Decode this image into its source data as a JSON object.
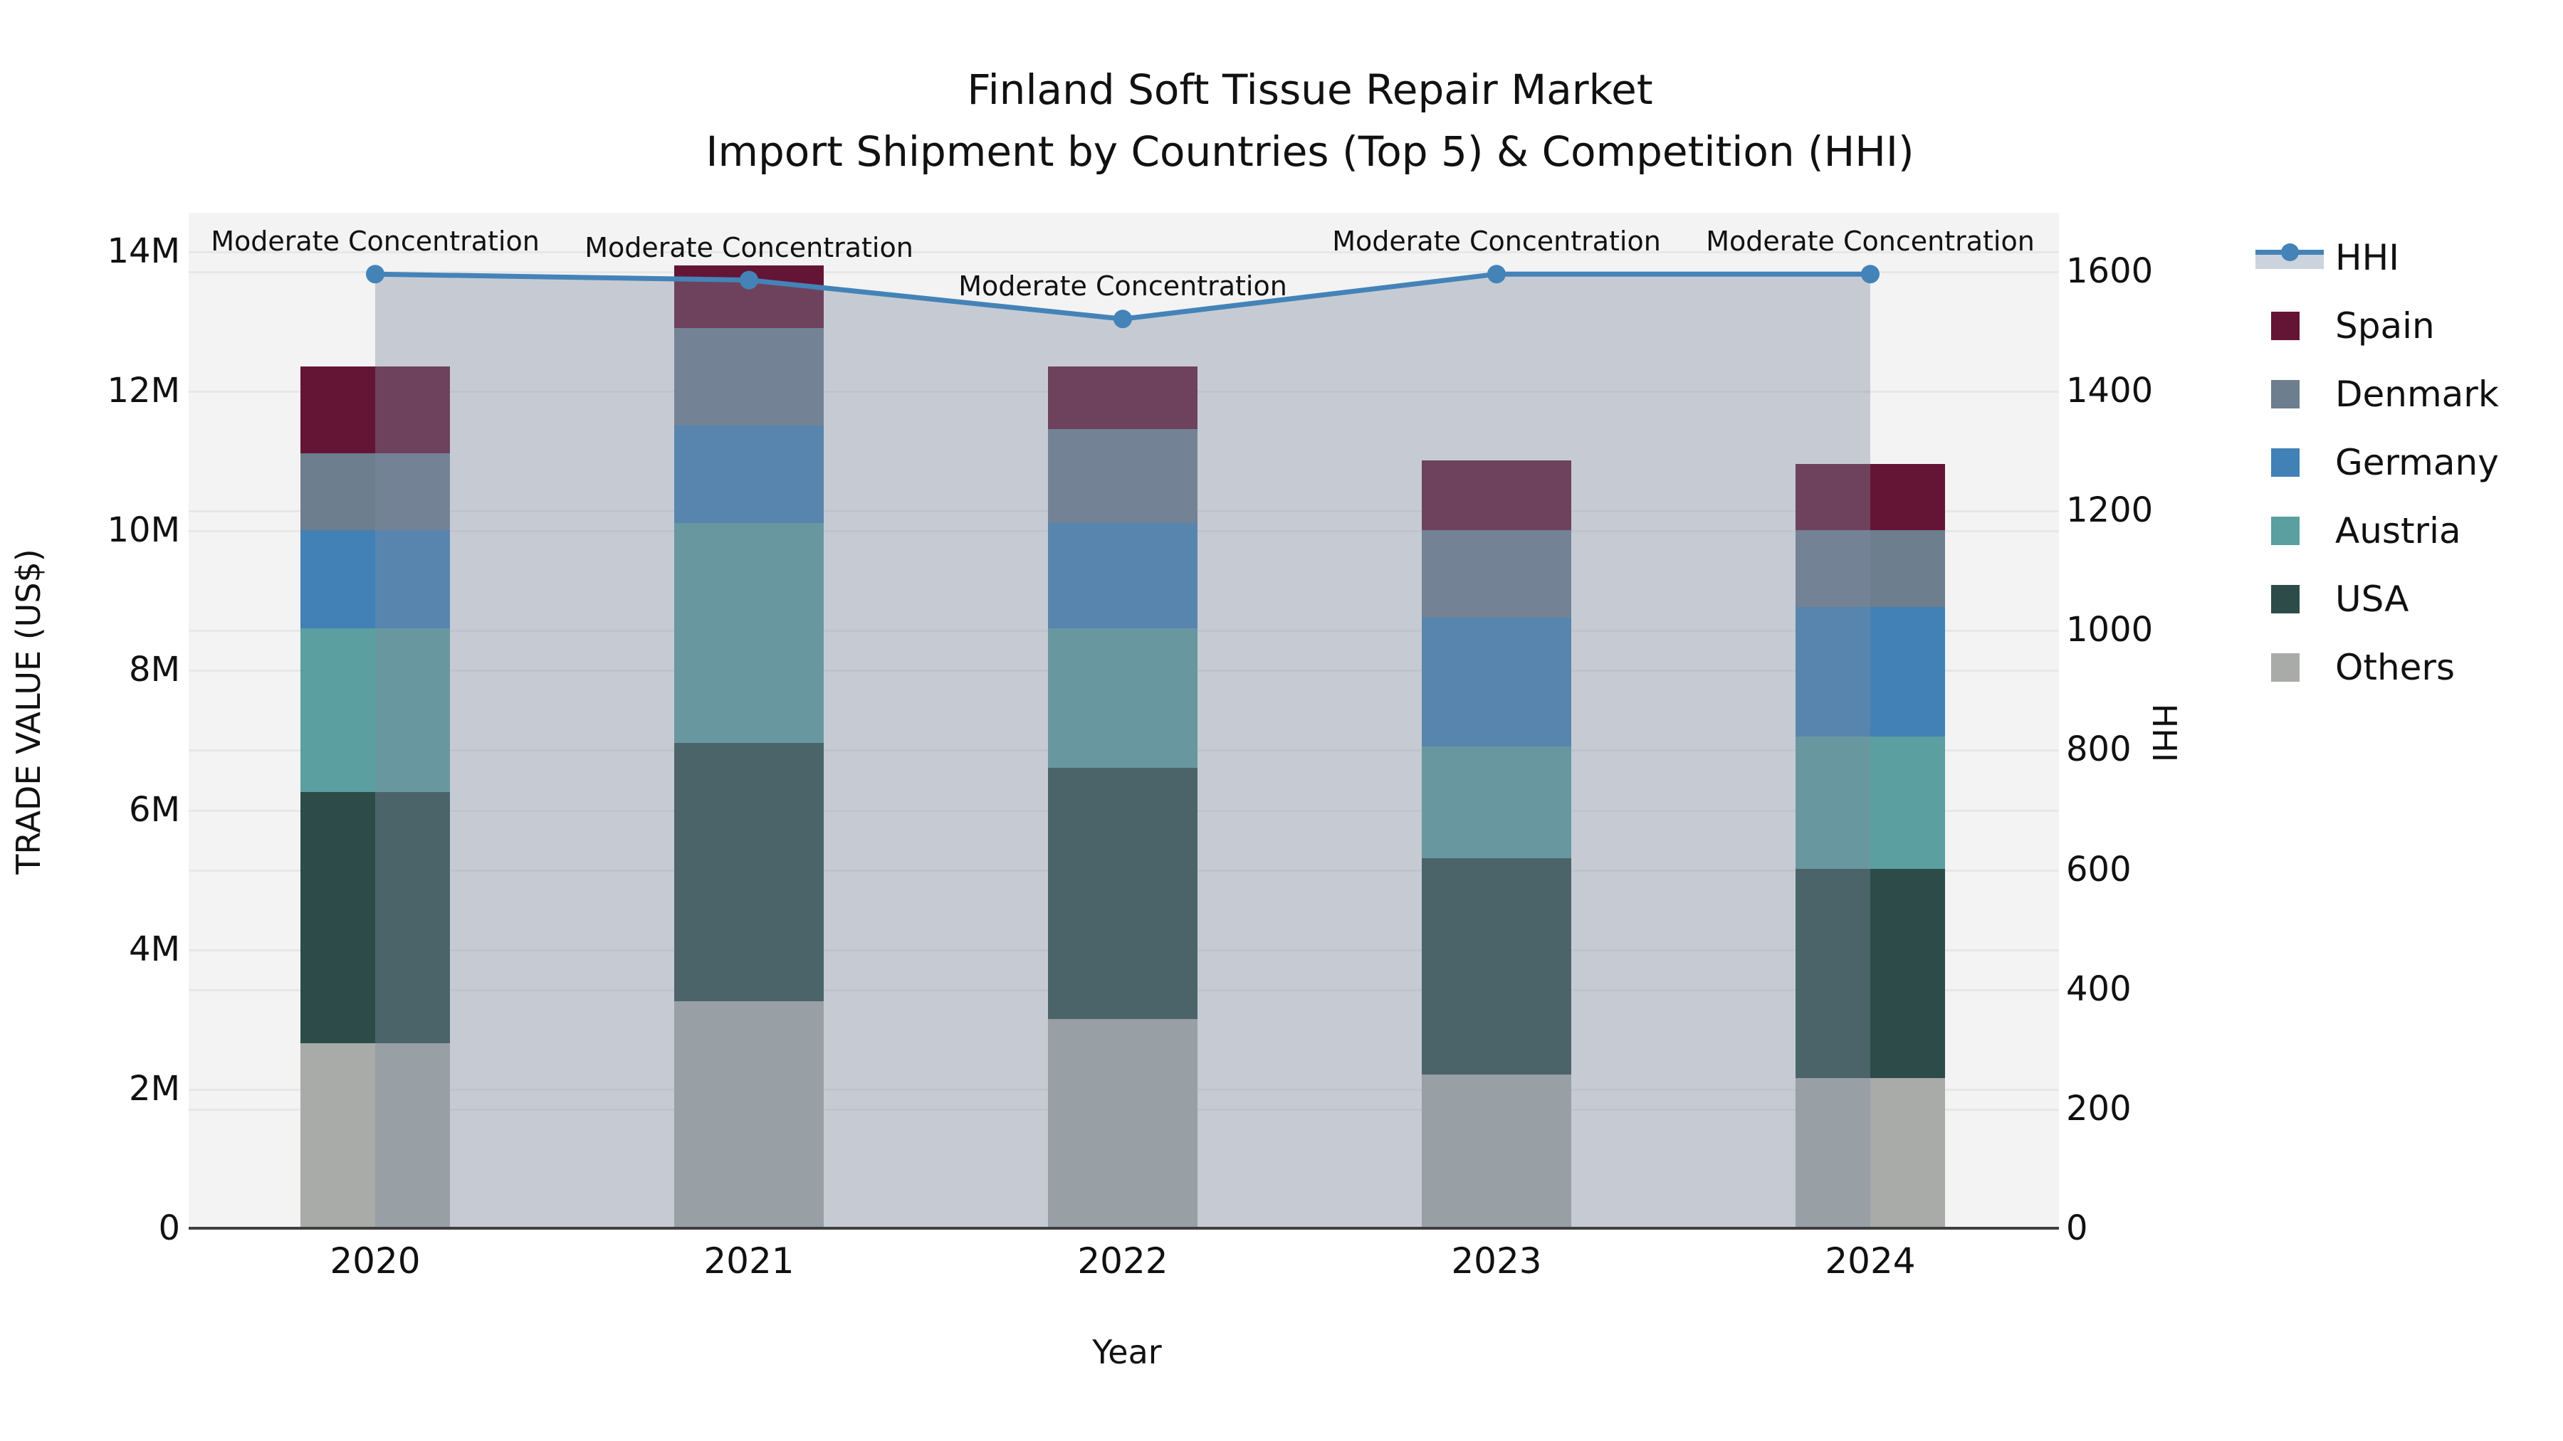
{
  "title": {
    "line1": "Finland Soft Tissue Repair Market",
    "line2": "Import Shipment by Countries (Top 5) & Competition (HHI)"
  },
  "axes": {
    "y_left": {
      "label": "TRADE VALUE (US$)",
      "ticks": [
        "0",
        "2M",
        "4M",
        "6M",
        "8M",
        "10M",
        "12M",
        "14M"
      ]
    },
    "y_right": {
      "label": "HHI",
      "ticks": [
        "0",
        "200",
        "400",
        "600",
        "800",
        "1000",
        "1200",
        "1400",
        "1600"
      ]
    },
    "x": {
      "label": "Year",
      "ticks": [
        "2020",
        "2021",
        "2022",
        "2023",
        "2024"
      ]
    }
  },
  "legend": [
    {
      "label": "HHI",
      "type": "line",
      "color": "#4483b8"
    },
    {
      "label": "Spain",
      "type": "swatch",
      "color": "#641535"
    },
    {
      "label": "Denmark",
      "type": "swatch",
      "color": "#6d7e8e"
    },
    {
      "label": "Germany",
      "type": "swatch",
      "color": "#4181b6"
    },
    {
      "label": "Austria",
      "type": "swatch",
      "color": "#5b9fa0"
    },
    {
      "label": "USA",
      "type": "swatch",
      "color": "#2d4c49"
    },
    {
      "label": "Others",
      "type": "swatch",
      "color": "#a9aba8"
    }
  ],
  "chart_data": {
    "type": "combo-stacked-bar-line",
    "title": "Finland Soft Tissue Repair Market — Import Shipment by Countries (Top 5) & Competition (HHI)",
    "categories": [
      "2020",
      "2021",
      "2022",
      "2023",
      "2024"
    ],
    "bar_value_unit": "M US$",
    "series": [
      {
        "name": "Others",
        "color": "#a9aba8",
        "values": [
          2.65,
          3.25,
          3.0,
          2.2,
          2.15
        ]
      },
      {
        "name": "USA",
        "color": "#2d4c49",
        "values": [
          3.6,
          3.7,
          3.6,
          3.1,
          3.0
        ]
      },
      {
        "name": "Austria",
        "color": "#5b9fa0",
        "values": [
          2.35,
          3.15,
          2.0,
          1.6,
          1.9
        ]
      },
      {
        "name": "Germany",
        "color": "#4181b6",
        "values": [
          1.4,
          1.4,
          1.5,
          1.85,
          1.85
        ]
      },
      {
        "name": "Denmark",
        "color": "#6d7e8e",
        "values": [
          1.1,
          1.4,
          1.35,
          1.25,
          1.1
        ]
      },
      {
        "name": "Spain",
        "color": "#641535",
        "values": [
          1.25,
          0.9,
          0.9,
          1.0,
          0.95
        ]
      }
    ],
    "bar_totals": [
      12.35,
      13.8,
      12.35,
      11.0,
      10.95
    ],
    "line": {
      "name": "HHI",
      "color": "#4483b8",
      "axis": "right",
      "values": [
        1595,
        1585,
        1520,
        1595,
        1595
      ],
      "fill_under": true,
      "fill_color": "rgba(125,140,160,0.38)",
      "annotations": [
        "Moderate Concentration",
        "Moderate Concentration",
        "Moderate Concentration",
        "Moderate Concentration",
        "Moderate Concentration"
      ]
    },
    "y_left": {
      "label": "TRADE VALUE (US$)",
      "lim": [
        0,
        14.55
      ],
      "tick_values": [
        0,
        2,
        4,
        6,
        8,
        10,
        12,
        14
      ]
    },
    "y_right": {
      "label": "HHI",
      "lim": [
        0,
        1697
      ],
      "tick_values": [
        0,
        200,
        400,
        600,
        800,
        1000,
        1200,
        1400,
        1600
      ]
    },
    "xlabel": "Year",
    "grid": true,
    "legend_position": "right"
  }
}
